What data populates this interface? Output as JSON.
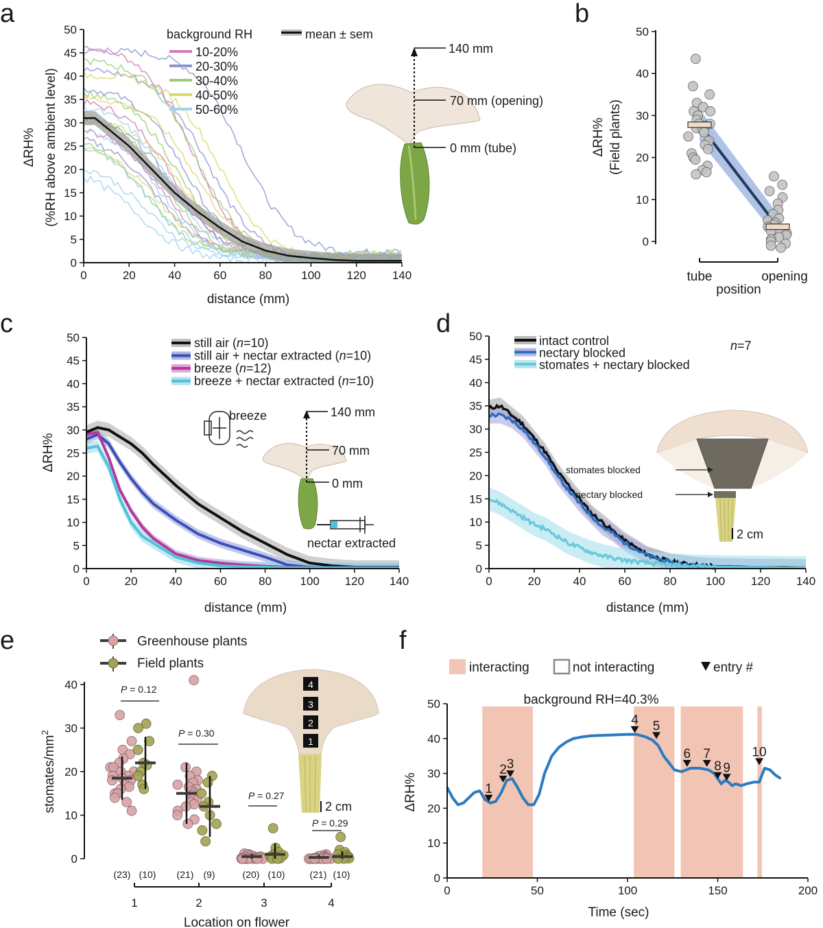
{
  "colors": {
    "black": "#111111",
    "pink": "#d67ab8",
    "purple_blue": "#8c95cc",
    "green": "#9ccc73",
    "yellow": "#d9d86a",
    "light_blue": "#9fd3ee",
    "royal_blue": "#3a4fb5",
    "magenta": "#b03a9e",
    "cyan": "#4fc3d9",
    "mid_blue": "#2b6fbf",
    "line_blue": "#2a7bc0",
    "interact_fill": "#f2c4b4",
    "greenhouse_dot": "#d9a3a6",
    "field_dot": "#a3a353",
    "field_b_dot": "#c4c4c4"
  },
  "panels": {
    "a": {
      "label": "a",
      "ylabel_line1": "ΔRH%",
      "ylabel_line2": "(%RH above ambient level)",
      "xlabel": "distance (mm)",
      "legend_title": "background RH",
      "legend_items": [
        "10-20%",
        "20-30%",
        "30-40%",
        "40-50%",
        "50-60%"
      ],
      "legend_mean": "mean ± sem",
      "ann_140": "140 mm",
      "ann_70": "70 mm (opening)",
      "ann_0": "0 mm (tube)"
    },
    "b": {
      "label": "b",
      "ylabel_line1": "ΔRH%",
      "ylabel_line2": "(Field plants)",
      "xlabel": "position"
    },
    "c": {
      "label": "c",
      "ylabel": "ΔRH%",
      "xlabel": "distance (mm)",
      "legend": [
        {
          "text": "still air (",
          "n": "n",
          "rest": "=10)"
        },
        {
          "text": "still air + nectar extracted (",
          "n": "n",
          "rest": "=10)"
        },
        {
          "text": "breeze (",
          "n": "n",
          "rest": "=12)"
        },
        {
          "text": "breeze + nectar extracted (",
          "n": "n",
          "rest": "=10)"
        }
      ],
      "ann_breeze": "breeze",
      "ann_140": "140 mm",
      "ann_70": "70 mm",
      "ann_0": "0 mm",
      "ann_nectar": "nectar extracted"
    },
    "d": {
      "label": "d",
      "xlabel": "distance (mm)",
      "legend": [
        "intact control",
        "nectary blocked",
        "stomates + nectary blocked"
      ],
      "n_italic": "n",
      "n_rest": "=7",
      "ann_stomates": "stomates blocked",
      "ann_nectary": "nectary blocked",
      "ann_scale": "2 cm"
    },
    "e": {
      "label": "e",
      "legend": [
        "Greenhouse plants",
        "Field plants"
      ],
      "ylabel": "stomates/mm",
      "ylabel_sup": "2",
      "xlabel": "Location on flower",
      "p_prefix": "P",
      "pvals": [
        "= 0.12",
        "= 0.30",
        "= 0.27",
        "= 0.29"
      ],
      "counts": [
        "(23)",
        "(10)",
        "(21)",
        "(9)",
        "(20)",
        "(10)",
        "(21)",
        "(10)"
      ],
      "petal_numbers": [
        "4",
        "3",
        "2",
        "1"
      ],
      "ann_scale": "2 cm"
    },
    "f": {
      "label": "f",
      "legend_interacting": "interacting",
      "legend_not": "not interacting",
      "legend_entry": "entry #",
      "subtitle": "background RH=40.3%",
      "ylabel": "ΔRH%",
      "xlabel": "Time (sec)",
      "entries": [
        "1",
        "2",
        "3",
        "4",
        "5",
        "6",
        "7",
        "8",
        "9",
        "10"
      ]
    }
  },
  "chart_data": [
    {
      "panel": "a",
      "type": "line",
      "title": "",
      "xlabel": "distance (mm)",
      "ylabel": "ΔRH% (%RH above ambient level)",
      "xlim": [
        0,
        140
      ],
      "ylim": [
        0,
        50
      ],
      "xticks": [
        0,
        20,
        40,
        60,
        80,
        100,
        120,
        140
      ],
      "yticks": [
        0,
        5,
        10,
        15,
        20,
        25,
        30,
        35,
        40,
        45,
        50
      ],
      "mean_series": {
        "name": "mean ± sem",
        "x": [
          0,
          5,
          10,
          20,
          30,
          40,
          50,
          60,
          70,
          80,
          90,
          100,
          110,
          120,
          130,
          140
        ],
        "values": [
          31,
          31,
          29,
          25,
          20,
          15,
          11,
          7.5,
          4.5,
          2.6,
          1.5,
          1.0,
          0.6,
          0.4,
          0.4,
          0.4
        ],
        "sem": 1.5
      },
      "individual_traces": [
        {
          "group": "10-20%",
          "start": 46,
          "half": 48
        },
        {
          "group": "10-20%",
          "start": 34,
          "half": 40
        },
        {
          "group": "10-20%",
          "start": 28,
          "half": 35
        },
        {
          "group": "20-30%",
          "start": 45,
          "half": 70
        },
        {
          "group": "20-30%",
          "start": 41,
          "half": 55
        },
        {
          "group": "20-30%",
          "start": 37,
          "half": 45
        },
        {
          "group": "20-30%",
          "start": 30,
          "half": 40
        },
        {
          "group": "20-30%",
          "start": 26,
          "half": 32
        },
        {
          "group": "30-40%",
          "start": 43,
          "half": 50
        },
        {
          "group": "30-40%",
          "start": 36,
          "half": 42
        },
        {
          "group": "30-40%",
          "start": 31,
          "half": 36
        },
        {
          "group": "30-40%",
          "start": 25,
          "half": 28
        },
        {
          "group": "40-50%",
          "start": 40,
          "half": 60
        },
        {
          "group": "40-50%",
          "start": 35,
          "half": 50
        },
        {
          "group": "40-50%",
          "start": 30,
          "half": 44
        },
        {
          "group": "40-50%",
          "start": 24,
          "half": 33
        },
        {
          "group": "50-60%",
          "start": 33,
          "half": 38
        },
        {
          "group": "50-60%",
          "start": 28,
          "half": 34
        },
        {
          "group": "50-60%",
          "start": 24,
          "half": 30
        },
        {
          "group": "50-60%",
          "start": 20,
          "half": 27
        },
        {
          "group": "50-60%",
          "start": 18,
          "half": 24
        }
      ]
    },
    {
      "panel": "b",
      "type": "scatter",
      "xlabel": "position",
      "ylabel": "ΔRH% (Field plants)",
      "categories": [
        "tube",
        "opening"
      ],
      "ylim": [
        0,
        50
      ],
      "yticks": [
        0,
        10,
        20,
        30,
        40,
        50
      ],
      "means": [
        27.8,
        3.5
      ],
      "tube_points": [
        43.5,
        37,
        35,
        33,
        32,
        31,
        31,
        30,
        29,
        28,
        28,
        27.5,
        27,
        26.5,
        26,
        25,
        24,
        23,
        22,
        21,
        20,
        19.5,
        18,
        17,
        16.5,
        16
      ],
      "opening_points": [
        15.5,
        13.5,
        12,
        10.5,
        9,
        7.5,
        6.5,
        5.5,
        5,
        4.5,
        4,
        3.5,
        3,
        2.5,
        2,
        1.5,
        1,
        0.5,
        0,
        -0.5,
        -1,
        -1.5
      ]
    },
    {
      "panel": "c",
      "type": "line",
      "xlabel": "distance (mm)",
      "ylabel": "ΔRH%",
      "xlim": [
        0,
        140
      ],
      "ylim": [
        0,
        50
      ],
      "xticks": [
        0,
        20,
        40,
        60,
        80,
        100,
        120,
        140
      ],
      "yticks": [
        0,
        5,
        10,
        15,
        20,
        25,
        30,
        35,
        40,
        45,
        50
      ],
      "x": [
        0,
        5,
        10,
        15,
        20,
        25,
        30,
        40,
        50,
        60,
        70,
        80,
        90,
        100,
        110,
        120,
        130,
        140
      ],
      "series": [
        {
          "name": "still air (n=10)",
          "values": [
            29.5,
            30.5,
            30,
            28.5,
            27,
            25,
            22.5,
            18,
            14,
            11,
            8,
            5.5,
            3,
            1.2,
            0.6,
            0.3,
            0.3,
            0.3
          ],
          "sem": 1.5
        },
        {
          "name": "still air + nectar extracted (n=10)",
          "values": [
            28,
            29,
            27,
            23,
            19.5,
            16.5,
            14,
            10.5,
            7.5,
            5.5,
            4,
            2.5,
            0.8,
            0.3,
            0.2,
            0.2,
            0.2,
            0.2
          ],
          "sem": 1.0
        },
        {
          "name": "breeze (n=12)",
          "values": [
            29,
            29.5,
            24,
            17,
            12.5,
            9,
            6.5,
            3.2,
            1.8,
            1.2,
            0.8,
            0.5,
            0.3,
            0.2,
            0.2,
            0.2,
            0.2,
            0.2
          ],
          "sem": 0.8
        },
        {
          "name": "breeze + nectar extracted (n=10)",
          "values": [
            26,
            26.5,
            22,
            15,
            10,
            7,
            5.5,
            2.5,
            1.2,
            0.6,
            0.4,
            0.3,
            0.2,
            0.2,
            0.2,
            0.2,
            0.2,
            0.2
          ],
          "sem": 1.2
        }
      ]
    },
    {
      "panel": "d",
      "type": "line",
      "xlabel": "distance (mm)",
      "ylabel": "",
      "xlim": [
        0,
        140
      ],
      "ylim": [
        0,
        50
      ],
      "xticks": [
        0,
        20,
        40,
        60,
        80,
        100,
        120,
        140
      ],
      "yticks": [
        0,
        5,
        10,
        15,
        20,
        25,
        30,
        35,
        40,
        45,
        50
      ],
      "x": [
        0,
        5,
        10,
        15,
        20,
        25,
        30,
        35,
        40,
        45,
        50,
        55,
        60,
        70,
        80,
        90,
        100,
        110,
        120,
        130,
        140
      ],
      "series": [
        {
          "name": "intact control",
          "values": [
            34.5,
            35,
            33,
            31,
            28,
            25,
            21,
            18,
            15,
            12,
            10,
            8,
            6,
            3,
            1.5,
            0.8,
            0.5,
            0.4,
            0.3,
            0.3,
            0.2
          ],
          "sem": 1.8
        },
        {
          "name": "nectary blocked",
          "values": [
            33,
            33,
            32,
            30,
            27,
            24,
            20,
            17,
            14,
            11.5,
            9,
            7.5,
            5.5,
            2.8,
            1.3,
            0.7,
            0.4,
            0.3,
            0.3,
            0.2,
            0.2
          ],
          "sem": 1.8
        },
        {
          "name": "stomates + nectary blocked",
          "values": [
            15,
            14,
            12.5,
            11,
            9.5,
            8.5,
            7,
            5.5,
            4.5,
            3.5,
            2.8,
            2.2,
            1.8,
            1.2,
            0.8,
            0.5,
            0.4,
            0.3,
            0.3,
            0.2,
            0.2
          ],
          "sem": 2.5
        }
      ]
    },
    {
      "panel": "e",
      "type": "scatter",
      "xlabel": "Location on flower",
      "ylabel": "stomates/mm2",
      "categories": [
        "1",
        "2",
        "3",
        "4"
      ],
      "ylim": [
        0,
        40
      ],
      "yticks": [
        0,
        10,
        20,
        30,
        40
      ],
      "series": [
        {
          "name": "Greenhouse plants",
          "means": [
            18.5,
            15,
            0.5,
            0.3
          ],
          "errs": [
            5,
            7,
            0.6,
            0.5
          ],
          "points": [
            [
              33,
              27,
              25,
              24,
              23,
              22,
              21,
              21,
              20,
              20,
              19,
              19,
              18.5,
              18,
              18,
              17,
              16.5,
              16,
              15,
              15,
              14,
              13,
              11
            ],
            [
              41,
              21,
              20,
              19,
              18,
              17.5,
              17,
              16.5,
              16,
              15.5,
              15,
              14.5,
              14,
              13.5,
              13,
              12.5,
              12,
              11,
              10,
              9,
              8
            ],
            [
              1.2,
              1,
              1,
              0.8,
              0.6,
              0.5,
              0.4,
              0.3,
              0.2,
              0.1,
              0,
              0,
              0,
              0,
              0,
              0,
              0,
              0,
              0,
              0
            ],
            [
              1,
              0.8,
              0.6,
              0.5,
              0.4,
              0.3,
              0.2,
              0.1,
              0,
              0,
              0,
              0,
              0,
              0,
              0,
              0,
              0,
              0,
              0,
              0,
              0
            ]
          ]
        },
        {
          "name": "Field plants",
          "means": [
            22,
            12,
            1,
            0.5
          ],
          "errs": [
            6,
            7,
            2.5,
            1.2
          ],
          "points": [
            [
              31,
              30,
              27,
              25,
              22,
              21.5,
              20,
              19,
              17,
              16
            ],
            [
              19,
              17.5,
              15,
              13,
              12,
              10,
              8,
              6.5,
              4
            ],
            [
              7,
              2.5,
              1.5,
              1,
              0.8,
              0.5,
              0.3,
              0.1,
              0,
              0
            ],
            [
              5,
              2,
              1.5,
              1,
              0.8,
              0.5,
              0.3,
              0.1,
              0,
              0
            ]
          ]
        }
      ],
      "pvalues": [
        "P = 0.12",
        "P = 0.30",
        "P = 0.27",
        "P = 0.29"
      ],
      "n": [
        [
          23,
          10
        ],
        [
          21,
          9
        ],
        [
          20,
          10
        ],
        [
          21,
          10
        ]
      ]
    },
    {
      "panel": "f",
      "type": "line",
      "title": "background RH=40.3%",
      "xlabel": "Time (sec)",
      "ylabel": "ΔRH%",
      "xlim": [
        0,
        200
      ],
      "ylim": [
        0,
        50
      ],
      "xticks": [
        0,
        50,
        100,
        150,
        200
      ],
      "yticks": [
        0,
        10,
        20,
        30,
        40,
        50
      ],
      "x": [
        0,
        3,
        6,
        9,
        12,
        15,
        18,
        21,
        24,
        27,
        30,
        33,
        36,
        39,
        42,
        45,
        48,
        51,
        54,
        58,
        62,
        66,
        70,
        75,
        80,
        90,
        100,
        105,
        110,
        114,
        117,
        120,
        123,
        126,
        130,
        135,
        140,
        145,
        148,
        150,
        152,
        154,
        156,
        158,
        160,
        163,
        166,
        170,
        173,
        176,
        179,
        182,
        185
      ],
      "values": [
        26,
        23,
        21,
        21.5,
        23,
        24.5,
        25,
        22.5,
        21.5,
        22,
        24.5,
        28,
        28.5,
        26,
        23,
        21,
        21,
        24,
        30,
        35,
        37.5,
        39,
        40,
        40.5,
        40.8,
        41,
        41.2,
        41.2,
        40.5,
        39.5,
        38,
        35,
        33,
        31,
        30.5,
        31.5,
        31.5,
        31,
        30,
        28.5,
        27,
        28,
        27.5,
        26.5,
        27,
        26.5,
        27,
        27.5,
        27.5,
        31.5,
        31,
        29.5,
        28.5
      ],
      "interacting_intervals": [
        [
          19.5,
          47.5
        ],
        [
          103.5,
          126
        ],
        [
          129.5,
          164
        ],
        [
          172,
          174.5
        ]
      ],
      "entries": [
        {
          "label": "1",
          "t": 23,
          "y": 21.5
        },
        {
          "label": "2",
          "t": 31,
          "y": 27
        },
        {
          "label": "3",
          "t": 35,
          "y": 28.5
        },
        {
          "label": "4",
          "t": 104,
          "y": 41.2
        },
        {
          "label": "5",
          "t": 116,
          "y": 39.5
        },
        {
          "label": "6",
          "t": 133,
          "y": 31.5
        },
        {
          "label": "7",
          "t": 144,
          "y": 31.5
        },
        {
          "label": "8",
          "t": 150,
          "y": 28
        },
        {
          "label": "9",
          "t": 155,
          "y": 27.5
        },
        {
          "label": "10",
          "t": 173,
          "y": 32
        }
      ]
    }
  ]
}
